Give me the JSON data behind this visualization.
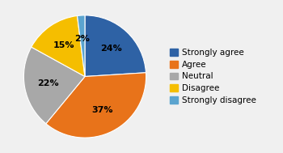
{
  "labels": [
    "Strongly agree",
    "Agree",
    "Neutral",
    "Disagree",
    "Strongly disagree"
  ],
  "values": [
    24,
    37,
    22,
    15,
    2
  ],
  "colors": [
    "#2E62A5",
    "#E8731A",
    "#A8A8A8",
    "#F5BE00",
    "#5BA4CF"
  ],
  "background_color": "#f0f0f0",
  "text_color": "#000000",
  "pct_fontsize": 8,
  "legend_fontsize": 7.5
}
